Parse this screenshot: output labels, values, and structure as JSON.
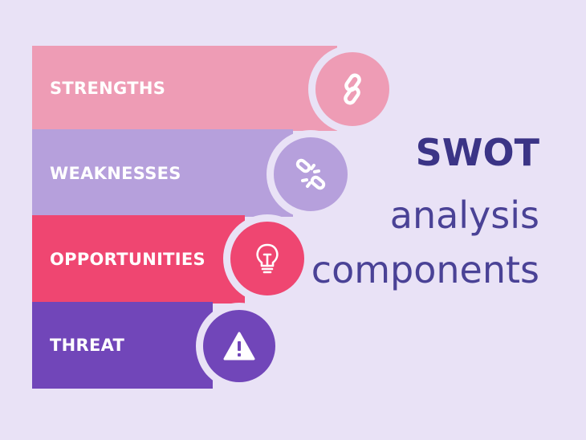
{
  "swot": {
    "title": {
      "line1": "SWOT",
      "line2": "analysis",
      "line3": "components"
    },
    "components": [
      {
        "label": "STRENGTHS",
        "icon": "link-icon",
        "color": "#ee9cb5"
      },
      {
        "label": "WEAKNESSES",
        "icon": "broken-link-icon",
        "color": "#b6a0dc"
      },
      {
        "label": "OPPORTUNITIES",
        "icon": "lightbulb-icon",
        "color": "#ef4671"
      },
      {
        "label": "THREAT",
        "icon": "warning-icon",
        "color": "#7146b9"
      }
    ],
    "colors": {
      "background": "#e9e2f6",
      "title": "#3b3486"
    }
  }
}
